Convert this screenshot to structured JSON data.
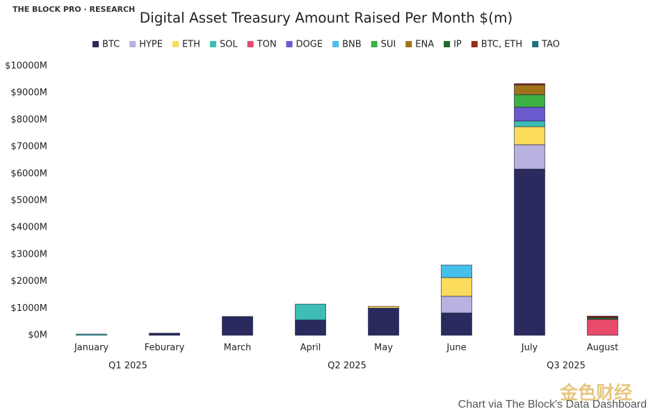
{
  "brand": "THE BLOCK PRO · RESEARCH",
  "credit": "Chart via The Block's Data Dashboard",
  "watermark": "金色财经",
  "chart_data": {
    "type": "bar",
    "stacked": true,
    "title": "Digital Asset Treasury Amount Raised Per Month $(m)",
    "categories": [
      "January",
      "Feburary",
      "March",
      "April",
      "May",
      "June",
      "July",
      "August"
    ],
    "groups": [
      {
        "label": "Q1 2025",
        "count": 2
      },
      {
        "label": "Q2 2025",
        "count": 4
      },
      {
        "label": "Q3 2025",
        "count": 2
      }
    ],
    "series": [
      {
        "name": "BTC",
        "color": "#2b2a5e",
        "values": [
          null,
          80,
          700,
          570,
          1010,
          830,
          6175,
          null
        ]
      },
      {
        "name": "HYPE",
        "color": "#b9b1e0",
        "values": [
          null,
          null,
          null,
          null,
          null,
          620,
          905,
          null
        ]
      },
      {
        "name": "ETH",
        "color": "#fbdc5c",
        "values": [
          null,
          null,
          null,
          null,
          70,
          695,
          670,
          null
        ]
      },
      {
        "name": "SOL",
        "color": "#3dbdb3",
        "values": [
          50,
          null,
          null,
          590,
          null,
          null,
          210,
          null
        ]
      },
      {
        "name": "TON",
        "color": "#e84a6a",
        "values": [
          null,
          null,
          null,
          null,
          null,
          null,
          null,
          595
        ]
      },
      {
        "name": "DOGE",
        "color": "#6a5acd",
        "values": [
          null,
          null,
          null,
          null,
          null,
          null,
          515,
          null
        ]
      },
      {
        "name": "BNB",
        "color": "#45c0ea",
        "values": [
          null,
          null,
          null,
          null,
          null,
          465,
          null,
          null
        ]
      },
      {
        "name": "SUI",
        "color": "#3cb043",
        "values": [
          null,
          null,
          null,
          null,
          null,
          null,
          465,
          null
        ]
      },
      {
        "name": "ENA",
        "color": "#a0731a",
        "values": [
          null,
          null,
          null,
          null,
          null,
          null,
          360,
          null
        ]
      },
      {
        "name": "IP",
        "color": "#1f6b2b",
        "values": [
          null,
          null,
          null,
          null,
          null,
          null,
          null,
          60
        ]
      },
      {
        "name": "BTC, ETH",
        "color": "#9b2a1a",
        "values": [
          null,
          null,
          null,
          null,
          null,
          null,
          50,
          60
        ]
      },
      {
        "name": "TAO",
        "color": "#1e6f78",
        "values": [
          null,
          null,
          null,
          null,
          null,
          null,
          null,
          null
        ]
      }
    ],
    "ylim": [
      0,
      10000
    ],
    "yticks": [
      {
        "value": 0,
        "label": "$0M"
      },
      {
        "value": 1000,
        "label": "$1000M"
      },
      {
        "value": 2000,
        "label": "$2000M"
      },
      {
        "value": 3000,
        "label": "$3000M"
      },
      {
        "value": 4000,
        "label": "$4000M"
      },
      {
        "value": 5000,
        "label": "$5000M"
      },
      {
        "value": 6000,
        "label": "$6000M"
      },
      {
        "value": 7000,
        "label": "$7000M"
      },
      {
        "value": 8000,
        "label": "$8000M"
      },
      {
        "value": 9000,
        "label": "$9000M"
      },
      {
        "value": 10000,
        "label": "$10000M"
      }
    ],
    "legend": "top"
  }
}
